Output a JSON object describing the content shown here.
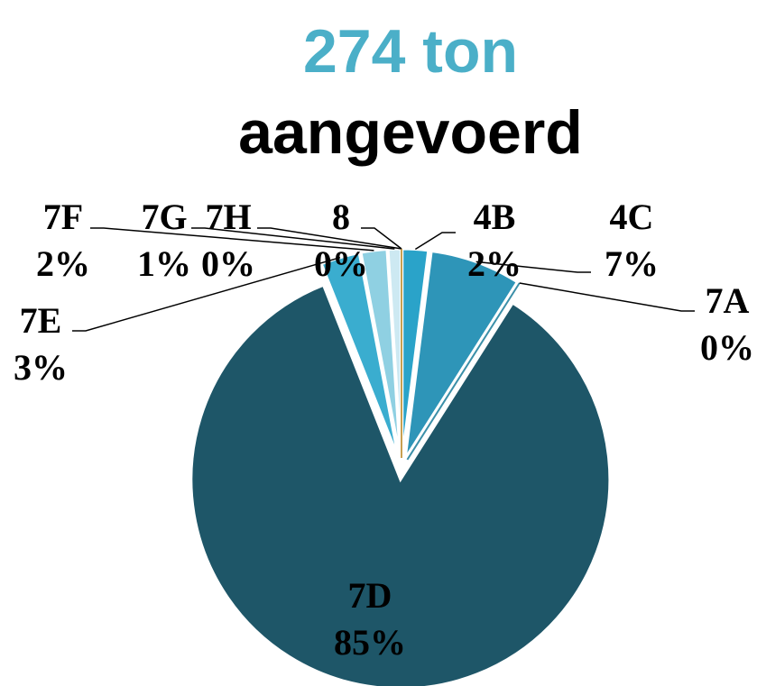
{
  "chart_data": {
    "type": "pie",
    "title": "274 ton",
    "subtitle": "aangevoerd",
    "categories": [
      "4B",
      "4C",
      "7A",
      "7D",
      "7E",
      "7F",
      "7G",
      "7H",
      "8"
    ],
    "values": [
      2,
      7,
      0,
      85,
      3,
      2,
      1,
      0,
      0
    ],
    "value_labels": [
      "2%",
      "7%",
      "0%",
      "85%",
      "3%",
      "2%",
      "1%",
      "0%",
      "0%"
    ],
    "colors": [
      "#2aa3c9",
      "#2e95b8",
      "#3b8fa8",
      "#1e5668",
      "#3aadcf",
      "#8fd0e2",
      "#cde9f2",
      "#e2e2c4",
      "#c8a050"
    ]
  }
}
